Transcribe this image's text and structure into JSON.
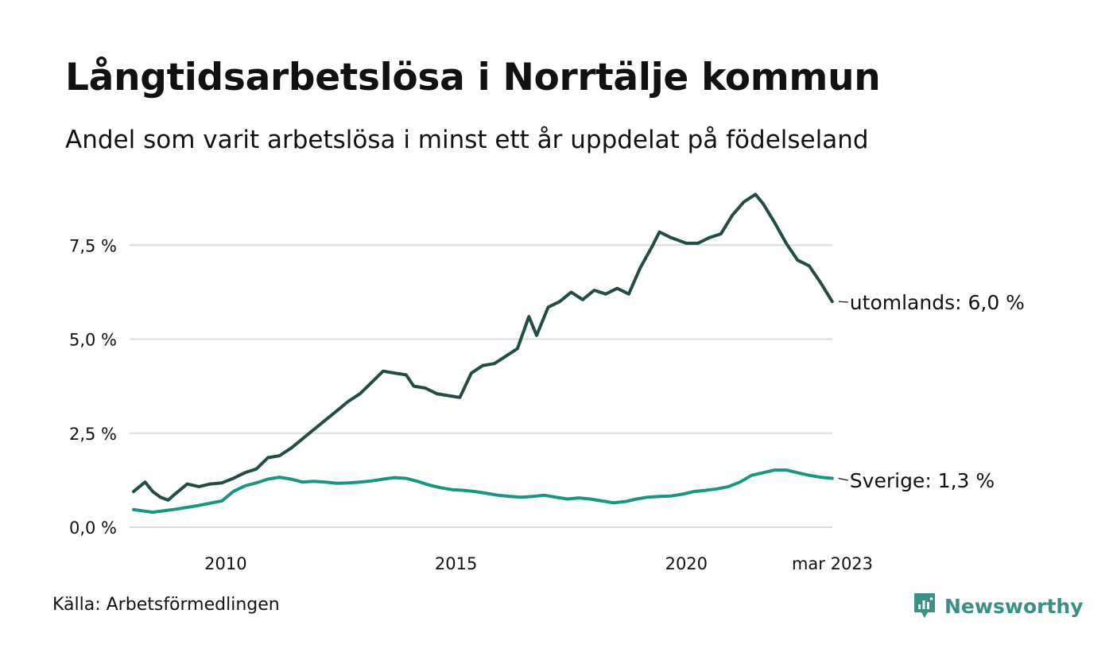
{
  "title": "Långtidsarbetslösa i Norrtälje kommun",
  "subtitle": "Andel som varit arbetslösa i minst ett år uppdelat på födelseland",
  "source": "Källa: Arbetsförmedlingen",
  "brand": {
    "name": "Newsworthy",
    "icon": "newsworthy-logo-icon",
    "color": "#3b8f84"
  },
  "chart_data": {
    "type": "line",
    "x_range": [
      "2008-01",
      "2023-03"
    ],
    "ylim": [
      0,
      9
    ],
    "grid": true,
    "legend": "end-of-line labels (right)",
    "y_ticks": [
      {
        "value": 0.0,
        "label": "0,0 %"
      },
      {
        "value": 2.5,
        "label": "2,5 %"
      },
      {
        "value": 5.0,
        "label": "5,0 %"
      },
      {
        "value": 7.5,
        "label": "7,5 %"
      }
    ],
    "x_ticks": [
      {
        "year": 2010,
        "label": "2010"
      },
      {
        "year": 2015,
        "label": "2015"
      },
      {
        "year": 2020,
        "label": "2020"
      },
      {
        "year": 2023.17,
        "label": "mar 2023"
      }
    ],
    "series": [
      {
        "name": "utomlands",
        "end_label": "utomlands: 6,0 %",
        "color": "#244c47",
        "points": [
          [
            "2008-01",
            0.95
          ],
          [
            "2008-04",
            1.2
          ],
          [
            "2008-06",
            0.95
          ],
          [
            "2008-08",
            0.8
          ],
          [
            "2008-10",
            0.72
          ],
          [
            "2008-12",
            0.9
          ],
          [
            "2009-03",
            1.15
          ],
          [
            "2009-06",
            1.08
          ],
          [
            "2009-09",
            1.15
          ],
          [
            "2009-12",
            1.18
          ],
          [
            "2010-03",
            1.3
          ],
          [
            "2010-06",
            1.45
          ],
          [
            "2010-09",
            1.55
          ],
          [
            "2010-12",
            1.85
          ],
          [
            "2011-03",
            1.9
          ],
          [
            "2011-06",
            2.1
          ],
          [
            "2011-09",
            2.35
          ],
          [
            "2011-12",
            2.6
          ],
          [
            "2012-03",
            2.85
          ],
          [
            "2012-06",
            3.1
          ],
          [
            "2012-09",
            3.35
          ],
          [
            "2012-12",
            3.55
          ],
          [
            "2013-03",
            3.85
          ],
          [
            "2013-06",
            4.15
          ],
          [
            "2013-09",
            4.1
          ],
          [
            "2013-12",
            4.05
          ],
          [
            "2014-02",
            3.75
          ],
          [
            "2014-05",
            3.7
          ],
          [
            "2014-08",
            3.55
          ],
          [
            "2014-11",
            3.5
          ],
          [
            "2015-02",
            3.45
          ],
          [
            "2015-05",
            4.1
          ],
          [
            "2015-08",
            4.3
          ],
          [
            "2015-11",
            4.35
          ],
          [
            "2016-02",
            4.55
          ],
          [
            "2016-05",
            4.75
          ],
          [
            "2016-08",
            5.6
          ],
          [
            "2016-10",
            5.1
          ],
          [
            "2017-01",
            5.85
          ],
          [
            "2017-04",
            6.0
          ],
          [
            "2017-07",
            6.25
          ],
          [
            "2017-10",
            6.05
          ],
          [
            "2018-01",
            6.3
          ],
          [
            "2018-04",
            6.2
          ],
          [
            "2018-07",
            6.35
          ],
          [
            "2018-10",
            6.2
          ],
          [
            "2019-01",
            6.9
          ],
          [
            "2019-04",
            7.45
          ],
          [
            "2019-06",
            7.85
          ],
          [
            "2019-09",
            7.7
          ],
          [
            "2020-01",
            7.55
          ],
          [
            "2020-04",
            7.55
          ],
          [
            "2020-07",
            7.7
          ],
          [
            "2020-10",
            7.8
          ],
          [
            "2021-01",
            8.3
          ],
          [
            "2021-04",
            8.65
          ],
          [
            "2021-07",
            8.85
          ],
          [
            "2021-09",
            8.6
          ],
          [
            "2021-12",
            8.1
          ],
          [
            "2022-03",
            7.55
          ],
          [
            "2022-06",
            7.1
          ],
          [
            "2022-09",
            6.95
          ],
          [
            "2022-12",
            6.5
          ],
          [
            "2023-03",
            6.0
          ]
        ]
      },
      {
        "name": "Sverige",
        "end_label": "Sverige: 1,3 %",
        "color": "#1b9484",
        "points": [
          [
            "2008-01",
            0.47
          ],
          [
            "2008-06",
            0.4
          ],
          [
            "2008-12",
            0.48
          ],
          [
            "2009-06",
            0.58
          ],
          [
            "2009-12",
            0.7
          ],
          [
            "2010-03",
            0.95
          ],
          [
            "2010-06",
            1.1
          ],
          [
            "2010-09",
            1.18
          ],
          [
            "2010-12",
            1.28
          ],
          [
            "2011-03",
            1.33
          ],
          [
            "2011-06",
            1.28
          ],
          [
            "2011-09",
            1.2
          ],
          [
            "2011-12",
            1.22
          ],
          [
            "2012-03",
            1.2
          ],
          [
            "2012-06",
            1.17
          ],
          [
            "2012-09",
            1.18
          ],
          [
            "2012-12",
            1.2
          ],
          [
            "2013-03",
            1.23
          ],
          [
            "2013-06",
            1.28
          ],
          [
            "2013-09",
            1.32
          ],
          [
            "2013-12",
            1.3
          ],
          [
            "2014-03",
            1.22
          ],
          [
            "2014-06",
            1.12
          ],
          [
            "2014-09",
            1.05
          ],
          [
            "2014-12",
            1.0
          ],
          [
            "2015-03",
            0.98
          ],
          [
            "2015-06",
            0.95
          ],
          [
            "2015-09",
            0.9
          ],
          [
            "2015-12",
            0.85
          ],
          [
            "2016-03",
            0.82
          ],
          [
            "2016-06",
            0.8
          ],
          [
            "2016-09",
            0.82
          ],
          [
            "2016-12",
            0.85
          ],
          [
            "2017-03",
            0.8
          ],
          [
            "2017-06",
            0.75
          ],
          [
            "2017-09",
            0.78
          ],
          [
            "2017-12",
            0.75
          ],
          [
            "2018-03",
            0.7
          ],
          [
            "2018-06",
            0.65
          ],
          [
            "2018-09",
            0.68
          ],
          [
            "2018-12",
            0.75
          ],
          [
            "2019-03",
            0.8
          ],
          [
            "2019-06",
            0.82
          ],
          [
            "2019-09",
            0.83
          ],
          [
            "2019-12",
            0.88
          ],
          [
            "2020-03",
            0.95
          ],
          [
            "2020-06",
            0.98
          ],
          [
            "2020-09",
            1.02
          ],
          [
            "2020-12",
            1.08
          ],
          [
            "2021-03",
            1.2
          ],
          [
            "2021-06",
            1.38
          ],
          [
            "2021-09",
            1.45
          ],
          [
            "2021-12",
            1.52
          ],
          [
            "2022-03",
            1.52
          ],
          [
            "2022-06",
            1.45
          ],
          [
            "2022-09",
            1.38
          ],
          [
            "2022-12",
            1.33
          ],
          [
            "2023-03",
            1.3
          ]
        ]
      }
    ]
  }
}
